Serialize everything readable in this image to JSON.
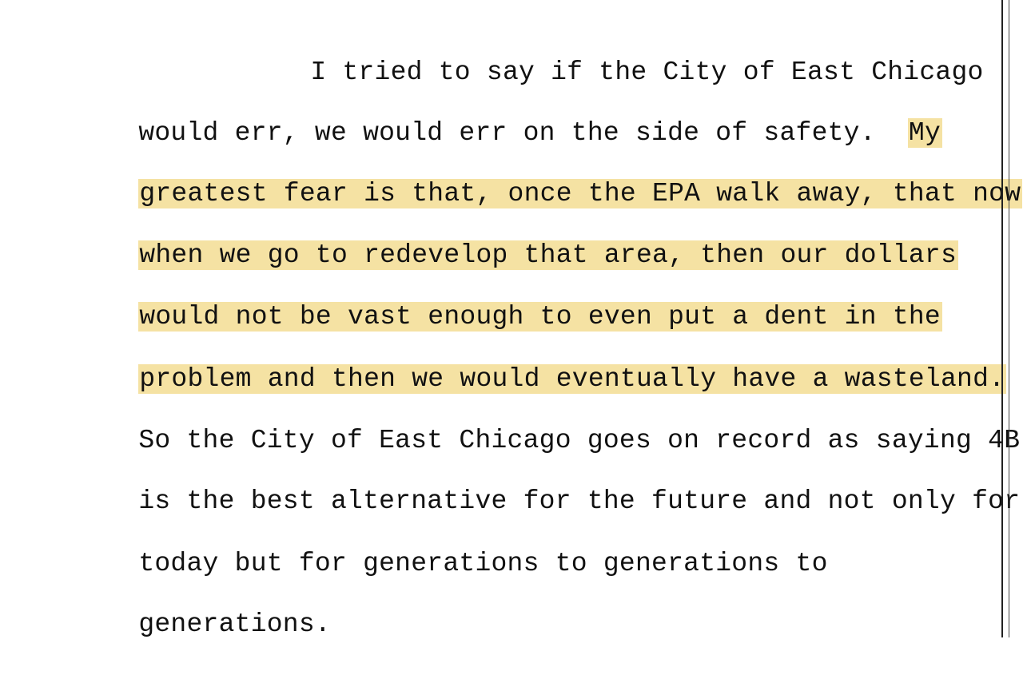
{
  "highlight_color": "#f5e2a3",
  "lines": [
    {
      "text": "I tried to say if the City of East Chicago"
    },
    {
      "text_before": "would err, we would err on the side of safety.  ",
      "highlight": "My"
    },
    {
      "highlight": "greatest fear is that, once the EPA walk away, that now"
    },
    {
      "highlight": "when we go to redevelop that area, then our dollars"
    },
    {
      "highlight": "would not be vast enough to even put a dent in the"
    },
    {
      "highlight": "problem and then we would eventually have a wasteland."
    },
    {
      "text": "So the City of East Chicago goes on record as saying 4B"
    },
    {
      "text": "is the best alternative for the future and not only for"
    },
    {
      "text": "today but for generations to generations to"
    },
    {
      "text": "generations."
    }
  ]
}
